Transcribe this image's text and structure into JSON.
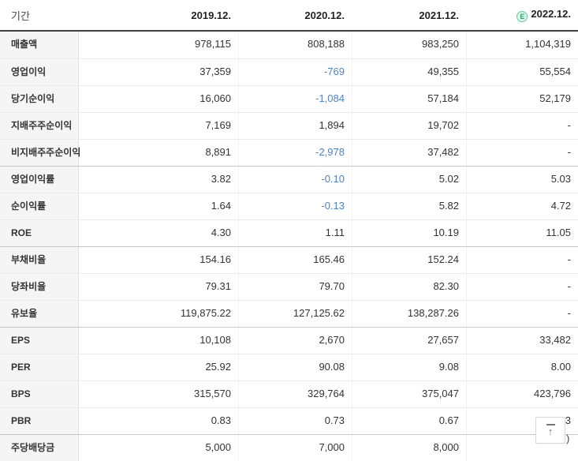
{
  "header": {
    "period_label": "기간",
    "columns": [
      {
        "label": "2019.12.",
        "estimate": false
      },
      {
        "label": "2020.12.",
        "estimate": false
      },
      {
        "label": "2021.12.",
        "estimate": false
      },
      {
        "label": "2022.12.",
        "estimate": true
      }
    ],
    "estimate_badge": "E"
  },
  "rows": [
    {
      "label": "매출액",
      "group_start": false,
      "values": [
        "978,115",
        "808,188",
        "983,250",
        "1,104,319"
      ]
    },
    {
      "label": "영업이익",
      "group_start": false,
      "values": [
        "37,359",
        "-769",
        "49,355",
        "55,554"
      ]
    },
    {
      "label": "당기순이익",
      "group_start": false,
      "values": [
        "16,060",
        "-1,084",
        "57,184",
        "52,179"
      ]
    },
    {
      "label": "지배주주순이익",
      "group_start": false,
      "values": [
        "7,169",
        "1,894",
        "19,702",
        "-"
      ]
    },
    {
      "label": "비지배주주순이익",
      "group_start": false,
      "values": [
        "8,891",
        "-2,978",
        "37,482",
        "-"
      ]
    },
    {
      "label": "영업이익률",
      "group_start": true,
      "values": [
        "3.82",
        "-0.10",
        "5.02",
        "5.03"
      ]
    },
    {
      "label": "순이익률",
      "group_start": false,
      "values": [
        "1.64",
        "-0.13",
        "5.82",
        "4.72"
      ]
    },
    {
      "label": "ROE",
      "group_start": false,
      "values": [
        "4.30",
        "1.11",
        "10.19",
        "11.05"
      ]
    },
    {
      "label": "부채비율",
      "group_start": true,
      "values": [
        "154.16",
        "165.46",
        "152.24",
        "-"
      ]
    },
    {
      "label": "당좌비율",
      "group_start": false,
      "values": [
        "79.31",
        "79.70",
        "82.30",
        "-"
      ]
    },
    {
      "label": "유보율",
      "group_start": false,
      "values": [
        "119,875.22",
        "127,125.62",
        "138,287.26",
        "-"
      ]
    },
    {
      "label": "EPS",
      "group_start": true,
      "values": [
        "10,108",
        "2,670",
        "27,657",
        "33,482"
      ]
    },
    {
      "label": "PER",
      "group_start": false,
      "values": [
        "25.92",
        "90.08",
        "9.08",
        "8.00"
      ]
    },
    {
      "label": "BPS",
      "group_start": false,
      "values": [
        "315,570",
        "329,764",
        "375,047",
        "423,796"
      ]
    },
    {
      "label": "PBR",
      "group_start": false,
      "values": [
        "0.83",
        "0.73",
        "0.67",
        "0.63"
      ]
    },
    {
      "label": "주당배당금",
      "group_start": true,
      "values": [
        "5,000",
        "7,000",
        "8,000",
        ""
      ]
    }
  ],
  "misc": {
    "partial_hidden_value": ")",
    "scroll_top_arrow": "↑"
  },
  "colors": {
    "negative_value": "#4d7ee0",
    "estimate_badge_green": "#27a56d",
    "header_border": "#404040",
    "label_background": "#f5f5f5"
  }
}
